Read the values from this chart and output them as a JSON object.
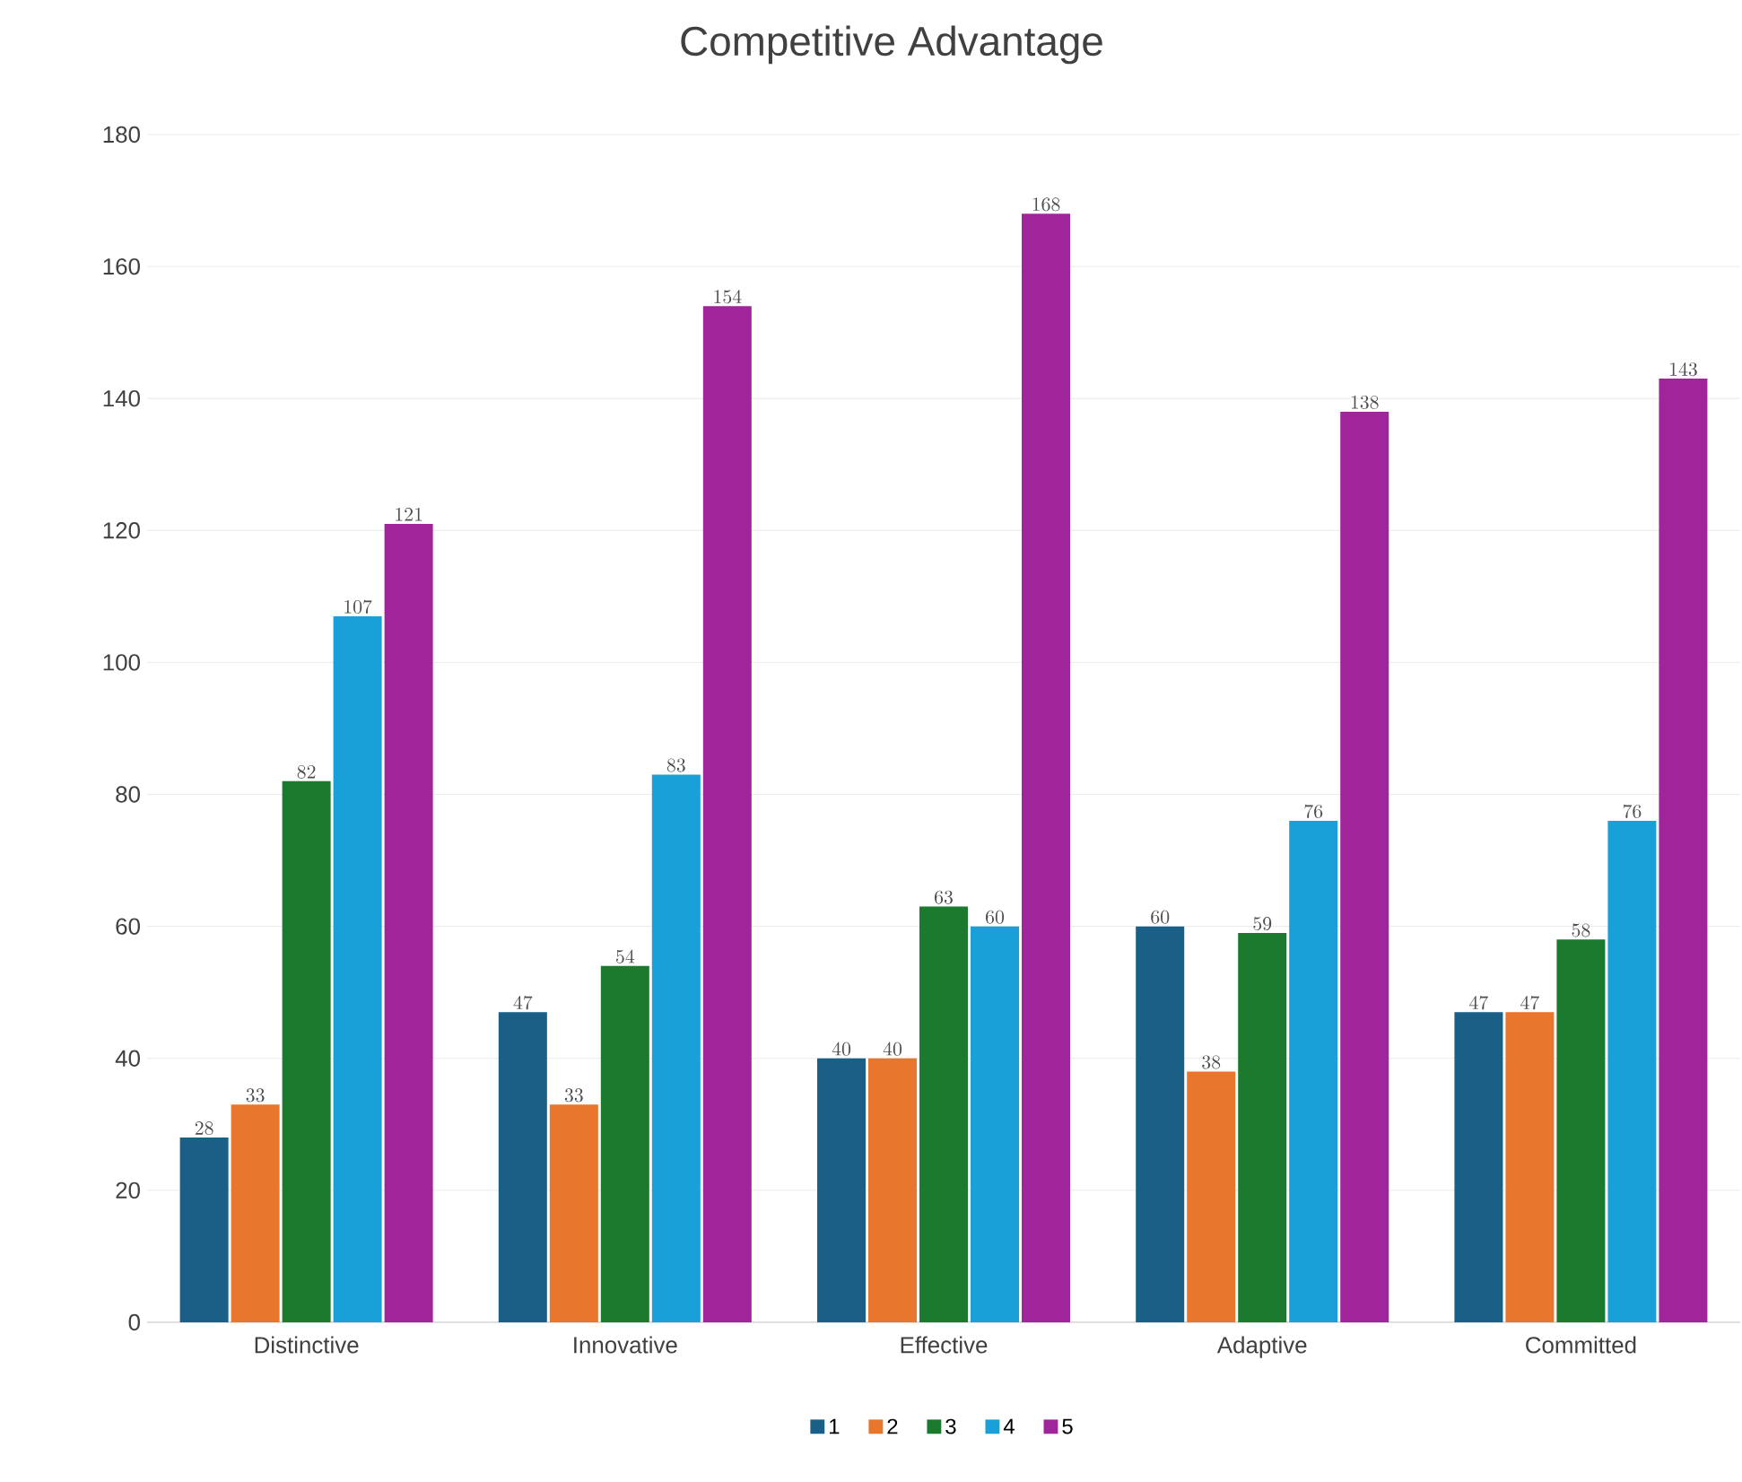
{
  "chart_data": {
    "type": "bar",
    "title": "Competitive Advantage",
    "categories": [
      "Distinctive",
      "Innovative",
      "Effective",
      "Adaptive",
      "Committed"
    ],
    "series": [
      {
        "name": "1",
        "color": "#1a5f85",
        "values": [
          28,
          47,
          40,
          60,
          47
        ]
      },
      {
        "name": "2",
        "color": "#e8762c",
        "values": [
          33,
          33,
          40,
          38,
          47
        ]
      },
      {
        "name": "3",
        "color": "#1b7a2e",
        "values": [
          82,
          54,
          63,
          59,
          58
        ]
      },
      {
        "name": "4",
        "color": "#1aa0d8",
        "values": [
          107,
          83,
          60,
          76,
          76
        ]
      },
      {
        "name": "5",
        "color": "#a0259a",
        "values": [
          121,
          154,
          168,
          138,
          143
        ]
      }
    ],
    "ylim": [
      0,
      180
    ],
    "yticks": [
      0,
      20,
      40,
      60,
      80,
      100,
      120,
      140,
      160,
      180
    ],
    "grid": "y",
    "legend": "bottom",
    "data_labels": true
  }
}
